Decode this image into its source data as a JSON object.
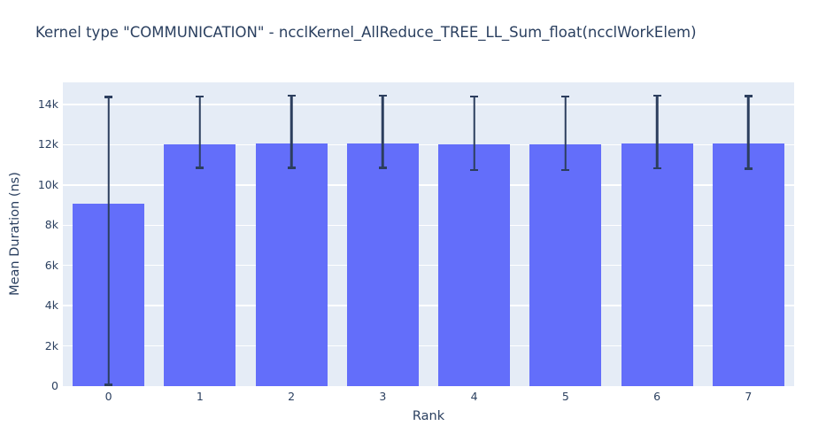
{
  "chart_data": {
    "type": "bar",
    "title": "Kernel type \"COMMUNICATION\" - ncclKernel_AllReduce_TREE_LL_Sum_float(ncclWorkElem)",
    "xlabel": "Rank",
    "ylabel": "Mean Duration (ns)",
    "categories": [
      "0",
      "1",
      "2",
      "3",
      "4",
      "5",
      "6",
      "7"
    ],
    "values": [
      9080,
      12040,
      12050,
      12050,
      12030,
      12030,
      12050,
      12050
    ],
    "error_high": [
      14440,
      14460,
      14490,
      14490,
      14450,
      14450,
      14490,
      14470
    ],
    "error_low": [
      0,
      10790,
      10790,
      10800,
      10690,
      10690,
      10780,
      10750
    ],
    "ylim": [
      0,
      15100
    ],
    "yticks": [
      0,
      2000,
      4000,
      6000,
      8000,
      10000,
      12000,
      14000
    ],
    "ytick_labels": [
      "0",
      "2k",
      "4k",
      "6k",
      "8k",
      "10k",
      "12k",
      "14k"
    ],
    "grid": true,
    "legend": "none",
    "colors": {
      "bar": "#636efa",
      "error_bar": "#2c3e5e",
      "plot_background": "#e5ecf6",
      "gridline": "#ffffff",
      "text": "#2a3f5f"
    }
  }
}
